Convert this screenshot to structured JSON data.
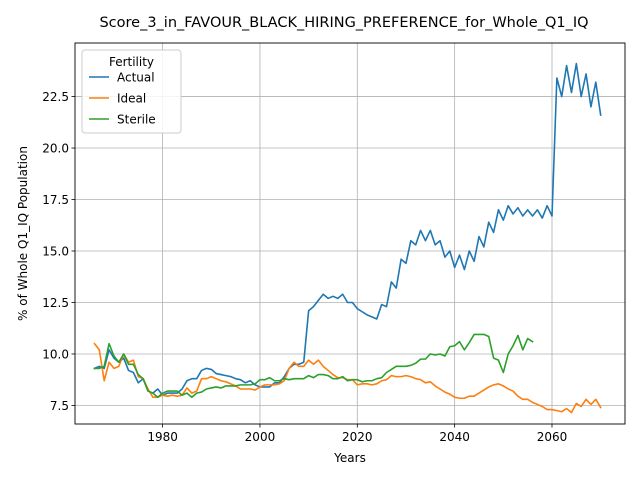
{
  "chart_data": {
    "type": "line",
    "title": "Score_3_in_FAVOUR_BLACK_HIRING_PREFERENCE_for_Whole_Q1_IQ",
    "xlabel": "Years",
    "ylabel": "% of Whole Q1_IQ Population",
    "xlim": [
      1962,
      2075
    ],
    "ylim": [
      6.6,
      25.1
    ],
    "xticks": [
      1980,
      2000,
      2020,
      2040,
      2060
    ],
    "xtick_labels": [
      "1980",
      "2000",
      "2020",
      "2040",
      "2060"
    ],
    "yticks": [
      7.5,
      10.0,
      12.5,
      15.0,
      17.5,
      20.0,
      22.5
    ],
    "ytick_labels": [
      "7.5",
      "10.0",
      "12.5",
      "15.0",
      "17.5",
      "20.0",
      "22.5"
    ],
    "grid": true,
    "legend": {
      "title": "Fertility",
      "placement": "top-left"
    },
    "series": [
      {
        "name": "Actual",
        "color": "#1f77b4",
        "x": [
          1966,
          1967,
          1968,
          1969,
          1970,
          1971,
          1972,
          1973,
          1974,
          1975,
          1976,
          1977,
          1978,
          1979,
          1980,
          1981,
          1982,
          1983,
          1984,
          1985,
          1986,
          1987,
          1988,
          1989,
          1990,
          1991,
          1992,
          1993,
          1994,
          1995,
          1996,
          1997,
          1998,
          1999,
          2000,
          2001,
          2002,
          2003,
          2004,
          2005,
          2006,
          2007,
          2008,
          2009,
          2010,
          2011,
          2012,
          2013,
          2014,
          2015,
          2016,
          2017,
          2018,
          2019,
          2020,
          2021,
          2022,
          2023,
          2024,
          2025,
          2026,
          2027,
          2028,
          2029,
          2030,
          2031,
          2032,
          2033,
          2034,
          2035,
          2036,
          2037,
          2038,
          2039,
          2040,
          2041,
          2042,
          2043,
          2044,
          2045,
          2046,
          2047,
          2048,
          2049,
          2050,
          2051,
          2052,
          2053,
          2054,
          2055,
          2056,
          2057,
          2058,
          2059,
          2060,
          2061,
          2062,
          2063,
          2064,
          2065,
          2066,
          2067,
          2068,
          2069,
          2070
        ],
        "y": [
          9.3,
          9.4,
          9.3,
          10.2,
          9.8,
          9.6,
          9.8,
          9.2,
          9.1,
          8.6,
          8.8,
          8.2,
          8.1,
          8.3,
          8.0,
          8.1,
          8.1,
          8.1,
          8.3,
          8.7,
          8.8,
          8.8,
          9.2,
          9.3,
          9.25,
          9.05,
          9.0,
          8.95,
          8.9,
          8.8,
          8.75,
          8.6,
          8.7,
          8.5,
          8.4,
          8.4,
          8.4,
          8.6,
          8.6,
          8.9,
          9.3,
          9.5,
          9.5,
          9.6,
          12.1,
          12.3,
          12.6,
          12.9,
          12.7,
          12.8,
          12.7,
          12.9,
          12.5,
          12.5,
          12.2,
          12.05,
          11.9,
          11.8,
          11.7,
          12.4,
          12.3,
          13.5,
          13.2,
          14.6,
          14.4,
          15.5,
          15.3,
          16.0,
          15.5,
          16.0,
          15.3,
          15.5,
          14.7,
          15.0,
          14.2,
          14.8,
          14.1,
          15.0,
          14.5,
          15.7,
          15.2,
          16.4,
          15.9,
          17.0,
          16.5,
          17.2,
          16.8,
          17.1,
          16.7,
          17.0,
          16.7,
          17.0,
          16.6,
          17.2,
          16.7,
          23.4,
          22.5,
          24.0,
          22.7,
          24.1,
          22.5,
          23.6,
          22.0,
          23.2,
          21.6
        ]
      },
      {
        "name": "Ideal",
        "color": "#ff7f0e",
        "x": [
          1966,
          1967,
          1968,
          1969,
          1970,
          1971,
          1972,
          1973,
          1974,
          1975,
          1976,
          1977,
          1978,
          1979,
          1980,
          1981,
          1982,
          1983,
          1984,
          1985,
          1986,
          1987,
          1988,
          1989,
          1990,
          1991,
          1992,
          1993,
          1994,
          1995,
          1996,
          1997,
          1998,
          1999,
          2000,
          2001,
          2002,
          2003,
          2004,
          2005,
          2006,
          2007,
          2008,
          2009,
          2010,
          2011,
          2012,
          2013,
          2014,
          2015,
          2016,
          2017,
          2018,
          2019,
          2020,
          2021,
          2022,
          2023,
          2024,
          2025,
          2026,
          2027,
          2028,
          2029,
          2030,
          2031,
          2032,
          2033,
          2034,
          2035,
          2036,
          2037,
          2038,
          2039,
          2040,
          2041,
          2042,
          2043,
          2044,
          2045,
          2046,
          2047,
          2048,
          2049,
          2050,
          2051,
          2052,
          2053,
          2054,
          2055,
          2056,
          2057,
          2058,
          2059,
          2060,
          2061,
          2062,
          2063,
          2064,
          2065,
          2066,
          2067,
          2068,
          2069,
          2070
        ],
        "y": [
          10.5,
          10.2,
          8.7,
          9.6,
          9.3,
          9.4,
          10.0,
          9.6,
          9.7,
          8.9,
          8.8,
          8.3,
          7.9,
          7.9,
          8.0,
          7.95,
          8.0,
          7.95,
          8.0,
          8.35,
          8.1,
          8.2,
          8.8,
          8.8,
          8.9,
          8.8,
          8.7,
          8.65,
          8.55,
          8.45,
          8.3,
          8.3,
          8.3,
          8.25,
          8.4,
          8.5,
          8.5,
          8.5,
          8.55,
          8.7,
          9.3,
          9.6,
          9.4,
          9.4,
          9.7,
          9.5,
          9.7,
          9.4,
          9.2,
          9.0,
          8.85,
          8.85,
          8.75,
          8.75,
          8.5,
          8.55,
          8.55,
          8.5,
          8.55,
          8.7,
          8.75,
          8.95,
          8.9,
          8.9,
          8.95,
          8.9,
          8.8,
          8.75,
          8.6,
          8.65,
          8.45,
          8.3,
          8.15,
          8.05,
          7.9,
          7.85,
          7.85,
          7.95,
          7.95,
          8.1,
          8.25,
          8.4,
          8.5,
          8.55,
          8.45,
          8.3,
          8.2,
          7.95,
          7.8,
          7.8,
          7.65,
          7.55,
          7.45,
          7.3,
          7.3,
          7.25,
          7.2,
          7.35,
          7.15,
          7.6,
          7.45,
          7.8,
          7.55,
          7.8,
          7.4
        ]
      },
      {
        "name": "Sterile",
        "color": "#2ca02c",
        "x": [
          1966,
          1967,
          1968,
          1969,
          1970,
          1971,
          1972,
          1973,
          1974,
          1975,
          1976,
          1977,
          1978,
          1979,
          1980,
          1981,
          1982,
          1983,
          1984,
          1985,
          1986,
          1987,
          1988,
          1989,
          1990,
          1991,
          1992,
          1993,
          1994,
          1995,
          1996,
          1997,
          1998,
          1999,
          2000,
          2001,
          2002,
          2003,
          2004,
          2005,
          2006,
          2007,
          2008,
          2009,
          2010,
          2011,
          2012,
          2013,
          2014,
          2015,
          2016,
          2017,
          2018,
          2019,
          2020,
          2021,
          2022,
          2023,
          2024,
          2025,
          2026,
          2027,
          2028,
          2029,
          2030,
          2031,
          2032,
          2033,
          2034,
          2035,
          2036,
          2037,
          2038,
          2039,
          2040,
          2041,
          2042,
          2043,
          2044,
          2045,
          2046,
          2047,
          2048,
          2049,
          2050,
          2051,
          2052,
          2053,
          2054,
          2055,
          2056
        ],
        "y": [
          9.3,
          9.3,
          9.4,
          10.5,
          9.9,
          9.6,
          10.0,
          9.5,
          9.5,
          9.0,
          8.8,
          8.2,
          8.1,
          7.9,
          8.1,
          8.2,
          8.2,
          8.2,
          8.0,
          8.1,
          7.9,
          8.1,
          8.15,
          8.3,
          8.35,
          8.4,
          8.35,
          8.45,
          8.45,
          8.45,
          8.5,
          8.5,
          8.5,
          8.55,
          8.75,
          8.75,
          8.85,
          8.7,
          8.7,
          8.8,
          8.75,
          8.8,
          8.8,
          8.8,
          8.95,
          8.85,
          9.0,
          9.0,
          8.95,
          8.8,
          8.8,
          8.9,
          8.7,
          8.75,
          8.75,
          8.65,
          8.7,
          8.7,
          8.8,
          8.85,
          9.1,
          9.25,
          9.4,
          9.4,
          9.4,
          9.45,
          9.55,
          9.75,
          9.75,
          10.0,
          9.95,
          10.0,
          9.9,
          10.35,
          10.4,
          10.6,
          10.2,
          10.55,
          10.95,
          10.95,
          10.95,
          10.85,
          9.8,
          9.7,
          9.1,
          10.0,
          10.4,
          10.9,
          10.2,
          10.75,
          10.6
        ]
      }
    ]
  }
}
